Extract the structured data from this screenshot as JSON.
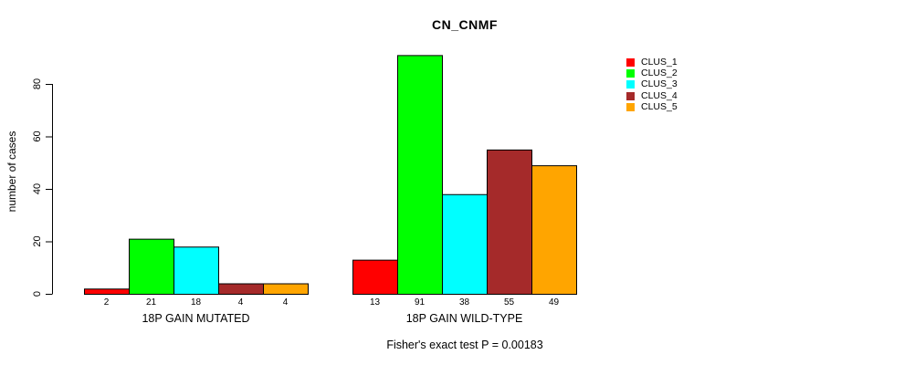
{
  "title": "CN_CNMF",
  "chart_data": {
    "type": "bar",
    "title": "CN_CNMF",
    "ylabel": "number of cases",
    "xlabel": "",
    "ylim": [
      0,
      91
    ],
    "yticks": [
      0,
      20,
      40,
      60,
      80
    ],
    "grid": false,
    "legend_position": "right-top-outside",
    "groups": [
      {
        "label": "18P GAIN MUTATED",
        "values": [
          2,
          21,
          18,
          4,
          4
        ]
      },
      {
        "label": "18P GAIN WILD-TYPE",
        "values": [
          13,
          91,
          38,
          55,
          49
        ]
      }
    ],
    "series": [
      {
        "name": "CLUS_1",
        "color": "#FF0000"
      },
      {
        "name": "CLUS_2",
        "color": "#00FF00"
      },
      {
        "name": "CLUS_3",
        "color": "#00FFFF"
      },
      {
        "name": "CLUS_4",
        "color": "#A52A2A"
      },
      {
        "name": "CLUS_5",
        "color": "#FFA500"
      }
    ],
    "bar_border_color": "#000000",
    "subtitle": "Fisher's exact test P = 0.00183"
  }
}
